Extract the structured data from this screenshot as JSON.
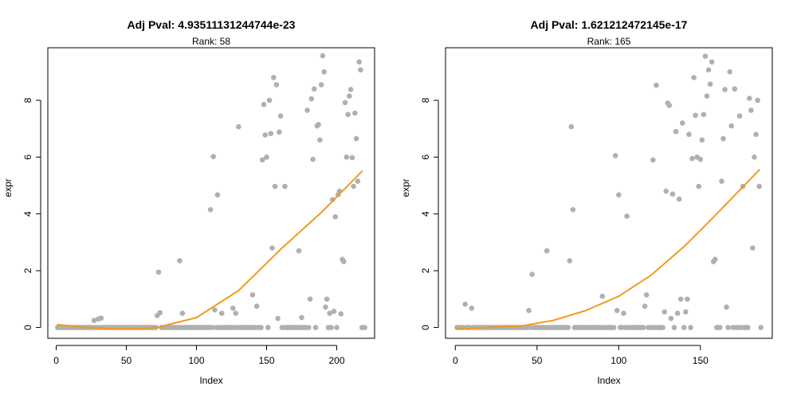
{
  "chart_data": [
    {
      "type": "scatter",
      "title": "Adj Pval: 4.93511131244744e-23",
      "subtitle": "Rank: 58",
      "xlabel": "Index",
      "ylabel": "expr",
      "xlim": [
        1,
        220
      ],
      "ylim": [
        0,
        9.6
      ],
      "xticks": [
        0,
        50,
        100,
        150,
        200
      ],
      "yticks": [
        0,
        2,
        4,
        6,
        8
      ],
      "n_points": 220,
      "point_color": "#b0b0b0",
      "curve_color": "#f29a1e",
      "points": [
        {
          "x": 27,
          "y": 0.25
        },
        {
          "x": 30,
          "y": 0.3
        },
        {
          "x": 32,
          "y": 0.33
        },
        {
          "x": 72,
          "y": 0.42
        },
        {
          "x": 73,
          "y": 1.95
        },
        {
          "x": 74,
          "y": 0.52
        },
        {
          "x": 88,
          "y": 2.35
        },
        {
          "x": 90,
          "y": 0.5
        },
        {
          "x": 110,
          "y": 4.15
        },
        {
          "x": 112,
          "y": 6.02
        },
        {
          "x": 113,
          "y": 0.62
        },
        {
          "x": 115,
          "y": 4.67
        },
        {
          "x": 118,
          "y": 0.5
        },
        {
          "x": 126,
          "y": 0.68
        },
        {
          "x": 128,
          "y": 0.5
        },
        {
          "x": 130,
          "y": 7.07
        },
        {
          "x": 140,
          "y": 1.15
        },
        {
          "x": 143,
          "y": 0.75
        },
        {
          "x": 147,
          "y": 5.9
        },
        {
          "x": 148,
          "y": 7.85
        },
        {
          "x": 149,
          "y": 6.78
        },
        {
          "x": 150,
          "y": 6.0
        },
        {
          "x": 152,
          "y": 8.0
        },
        {
          "x": 153,
          "y": 6.83
        },
        {
          "x": 154,
          "y": 2.8
        },
        {
          "x": 155,
          "y": 8.8
        },
        {
          "x": 156,
          "y": 4.97
        },
        {
          "x": 157,
          "y": 8.55
        },
        {
          "x": 158,
          "y": 0.32
        },
        {
          "x": 159,
          "y": 6.88
        },
        {
          "x": 160,
          "y": 7.45
        },
        {
          "x": 163,
          "y": 4.97
        },
        {
          "x": 173,
          "y": 2.7
        },
        {
          "x": 175,
          "y": 0.35
        },
        {
          "x": 179,
          "y": 7.65
        },
        {
          "x": 181,
          "y": 1.0
        },
        {
          "x": 182,
          "y": 8.05
        },
        {
          "x": 183,
          "y": 5.92
        },
        {
          "x": 184,
          "y": 8.4
        },
        {
          "x": 186,
          "y": 7.1
        },
        {
          "x": 187,
          "y": 7.15
        },
        {
          "x": 188,
          "y": 6.6
        },
        {
          "x": 189,
          "y": 8.55
        },
        {
          "x": 190,
          "y": 9.57
        },
        {
          "x": 191,
          "y": 9.0
        },
        {
          "x": 192,
          "y": 0.72
        },
        {
          "x": 193,
          "y": 1.0
        },
        {
          "x": 195,
          "y": 0.5
        },
        {
          "x": 197,
          "y": 4.5
        },
        {
          "x": 198,
          "y": 0.57
        },
        {
          "x": 199,
          "y": 3.9
        },
        {
          "x": 201,
          "y": 4.68
        },
        {
          "x": 202,
          "y": 4.8
        },
        {
          "x": 203,
          "y": 0.48
        },
        {
          "x": 204,
          "y": 2.4
        },
        {
          "x": 205,
          "y": 2.32
        },
        {
          "x": 206,
          "y": 7.92
        },
        {
          "x": 207,
          "y": 6.0
        },
        {
          "x": 208,
          "y": 7.5
        },
        {
          "x": 209,
          "y": 8.15
        },
        {
          "x": 210,
          "y": 8.38
        },
        {
          "x": 211,
          "y": 5.98
        },
        {
          "x": 212,
          "y": 4.97
        },
        {
          "x": 213,
          "y": 7.55
        },
        {
          "x": 214,
          "y": 6.65
        },
        {
          "x": 215,
          "y": 5.15
        },
        {
          "x": 216,
          "y": 9.35
        },
        {
          "x": 217,
          "y": 9.07
        }
      ],
      "curve": {
        "x": [
          1,
          20,
          40,
          60,
          72,
          100,
          130,
          160,
          190,
          218
        ],
        "y": [
          0.1,
          0.0,
          -0.05,
          -0.05,
          0.0,
          0.35,
          1.3,
          2.75,
          4.1,
          5.5
        ]
      }
    },
    {
      "type": "scatter",
      "title": "Adj Pval: 1.621212472145e-17",
      "subtitle": "Rank: 165",
      "xlabel": "Index",
      "ylabel": "expr",
      "xlim": [
        1,
        187
      ],
      "ylim": [
        0,
        9.6
      ],
      "xticks": [
        0,
        50,
        100,
        150
      ],
      "yticks": [
        0,
        2,
        4,
        6,
        8
      ],
      "n_points": 187,
      "point_color": "#b0b0b0",
      "curve_color": "#f29a1e",
      "points": [
        {
          "x": 6,
          "y": 0.82
        },
        {
          "x": 10,
          "y": 0.68
        },
        {
          "x": 45,
          "y": 0.6
        },
        {
          "x": 47,
          "y": 1.87
        },
        {
          "x": 56,
          "y": 2.7
        },
        {
          "x": 70,
          "y": 2.35
        },
        {
          "x": 71,
          "y": 7.07
        },
        {
          "x": 72,
          "y": 4.15
        },
        {
          "x": 90,
          "y": 1.1
        },
        {
          "x": 98,
          "y": 6.05
        },
        {
          "x": 99,
          "y": 0.6
        },
        {
          "x": 100,
          "y": 4.67
        },
        {
          "x": 103,
          "y": 0.5
        },
        {
          "x": 105,
          "y": 3.92
        },
        {
          "x": 116,
          "y": 0.75
        },
        {
          "x": 117,
          "y": 1.15
        },
        {
          "x": 121,
          "y": 5.9
        },
        {
          "x": 123,
          "y": 8.53
        },
        {
          "x": 128,
          "y": 0.55
        },
        {
          "x": 129,
          "y": 4.8
        },
        {
          "x": 130,
          "y": 7.9
        },
        {
          "x": 131,
          "y": 7.82
        },
        {
          "x": 132,
          "y": 0.32
        },
        {
          "x": 133,
          "y": 4.7
        },
        {
          "x": 135,
          "y": 6.9
        },
        {
          "x": 136,
          "y": 0.5
        },
        {
          "x": 137,
          "y": 4.52
        },
        {
          "x": 138,
          "y": 1.0
        },
        {
          "x": 139,
          "y": 7.2
        },
        {
          "x": 141,
          "y": 0.55
        },
        {
          "x": 142,
          "y": 1.0
        },
        {
          "x": 143,
          "y": 6.8
        },
        {
          "x": 145,
          "y": 5.95
        },
        {
          "x": 146,
          "y": 8.8
        },
        {
          "x": 147,
          "y": 7.47
        },
        {
          "x": 148,
          "y": 6.0
        },
        {
          "x": 149,
          "y": 4.97
        },
        {
          "x": 150,
          "y": 5.92
        },
        {
          "x": 151,
          "y": 6.6
        },
        {
          "x": 152,
          "y": 7.5
        },
        {
          "x": 153,
          "y": 9.55
        },
        {
          "x": 154,
          "y": 8.15
        },
        {
          "x": 155,
          "y": 9.07
        },
        {
          "x": 156,
          "y": 8.57
        },
        {
          "x": 157,
          "y": 9.35
        },
        {
          "x": 158,
          "y": 2.32
        },
        {
          "x": 159,
          "y": 2.4
        },
        {
          "x": 163,
          "y": 5.15
        },
        {
          "x": 164,
          "y": 6.65
        },
        {
          "x": 165,
          "y": 8.38
        },
        {
          "x": 166,
          "y": 0.72
        },
        {
          "x": 168,
          "y": 9.0
        },
        {
          "x": 169,
          "y": 7.1
        },
        {
          "x": 171,
          "y": 8.4
        },
        {
          "x": 174,
          "y": 7.45
        },
        {
          "x": 176,
          "y": 4.97
        },
        {
          "x": 180,
          "y": 8.07
        },
        {
          "x": 181,
          "y": 7.65
        },
        {
          "x": 182,
          "y": 2.8
        },
        {
          "x": 183,
          "y": 6.0
        },
        {
          "x": 184,
          "y": 6.8
        },
        {
          "x": 185,
          "y": 8.0
        },
        {
          "x": 186,
          "y": 4.97
        }
      ],
      "curve": {
        "x": [
          1,
          20,
          40,
          60,
          80,
          100,
          120,
          140,
          160,
          186
        ],
        "y": [
          -0.05,
          0.0,
          0.05,
          0.25,
          0.6,
          1.1,
          1.85,
          2.85,
          4.0,
          5.55
        ]
      }
    }
  ]
}
